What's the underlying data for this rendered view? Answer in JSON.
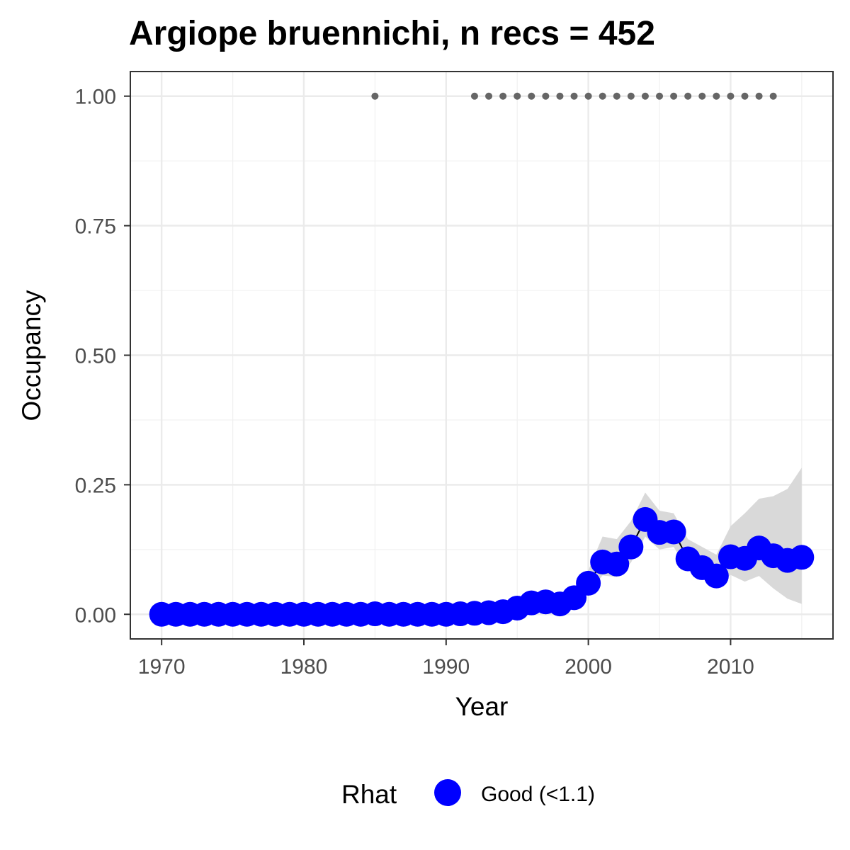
{
  "chart_data": {
    "type": "scatter",
    "title": "Argiope bruennichi, n recs = 452",
    "xlabel": "Year",
    "ylabel": "Occupancy",
    "xlim": [
      1967.8,
      1917.2
    ],
    "ylim": [
      -0.0475,
      1.0475
    ],
    "x_ticks": [
      1970,
      1980,
      1990,
      2000,
      2010
    ],
    "x_tick_labels": [
      "1970",
      "1980",
      "1990",
      "2000",
      "2010"
    ],
    "y_ticks": [
      0,
      0.25,
      0.5,
      0.75,
      1.0
    ],
    "y_tick_labels": [
      "0.00",
      "0.25",
      "0.50",
      "0.75",
      "1.00"
    ],
    "grid": true,
    "legend": {
      "position": "bottom",
      "title": "Rhat",
      "entries": [
        {
          "label": "Good (<1.1)",
          "color": "#0000ff"
        }
      ]
    },
    "series": [
      {
        "name": "Good (<1.1)",
        "color": "#0000ff",
        "x": [
          1970,
          1971,
          1972,
          1973,
          1974,
          1975,
          1976,
          1977,
          1978,
          1979,
          1980,
          1981,
          1982,
          1983,
          1984,
          1985,
          1986,
          1987,
          1988,
          1989,
          1990,
          1991,
          1992,
          1993,
          1994,
          1995,
          1996,
          1997,
          1998,
          1999,
          2000,
          2001,
          2002,
          2003,
          2004,
          2005,
          2006,
          2007,
          2008,
          2009,
          2010,
          2011,
          2012,
          2013,
          2014,
          2015
        ],
        "y": [
          0.0,
          0.0,
          0.0,
          0.0,
          0.0,
          0.0,
          0.0,
          0.0,
          0.0,
          0.0,
          0.0,
          0.0,
          0.0,
          0.0,
          0.0,
          0.001,
          0.0,
          0.0,
          0.0,
          0.0,
          0.0,
          0.001,
          0.002,
          0.003,
          0.005,
          0.012,
          0.022,
          0.024,
          0.02,
          0.032,
          0.06,
          0.101,
          0.097,
          0.13,
          0.183,
          0.158,
          0.159,
          0.107,
          0.09,
          0.074,
          0.111,
          0.108,
          0.128,
          0.113,
          0.104,
          0.11
        ],
        "ci_lower": [
          0,
          0,
          0,
          0,
          0,
          0,
          0,
          0,
          0,
          0,
          0,
          0,
          0,
          0,
          0,
          0,
          0,
          0,
          0,
          0,
          0,
          0,
          0,
          0,
          0,
          0.005,
          0.012,
          0.014,
          0.011,
          0.02,
          0.04,
          0.075,
          0.072,
          0.1,
          0.15,
          0.125,
          0.13,
          0.085,
          0.068,
          0.058,
          0.076,
          0.063,
          0.074,
          0.05,
          0.03,
          0.02
        ],
        "ci_upper": [
          0,
          0,
          0,
          0,
          0,
          0,
          0,
          0,
          0,
          0,
          0,
          0,
          0,
          0,
          0,
          0.002,
          0,
          0,
          0,
          0,
          0,
          0.003,
          0.005,
          0.008,
          0.012,
          0.02,
          0.032,
          0.035,
          0.03,
          0.045,
          0.085,
          0.15,
          0.145,
          0.18,
          0.235,
          0.2,
          0.195,
          0.145,
          0.13,
          0.115,
          0.17,
          0.195,
          0.223,
          0.228,
          0.242,
          0.283
        ]
      }
    ],
    "detections": {
      "color": "#666666",
      "y": 1.0,
      "x": [
        1985,
        1992,
        1993,
        1994,
        1995,
        1996,
        1997,
        1998,
        1999,
        2000,
        2001,
        2002,
        2003,
        2004,
        2005,
        2006,
        2007,
        2008,
        2009,
        2010,
        2011,
        2012,
        2013
      ]
    }
  }
}
